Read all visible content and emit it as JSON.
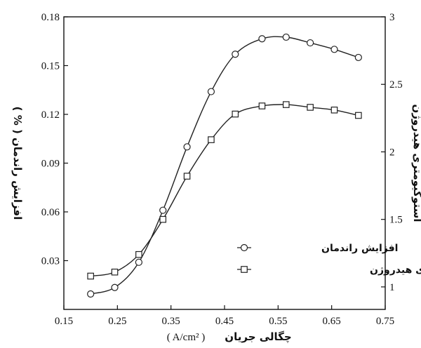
{
  "chart_data": {
    "type": "line",
    "xlabel": "چگالی جریان",
    "xunit": "( A/cm² )",
    "ylabel_left": "افزایش راندمان ( % )",
    "ylabel_right": "استوکیومتری هیدروژن",
    "xlim": [
      0.15,
      0.75
    ],
    "ylim_left": [
      0.0,
      0.18
    ],
    "ylim_right": [
      0.8333,
      3
    ],
    "xticks": [
      "0.15",
      "0.25",
      "0.35",
      "0.45",
      "0.55",
      "0.65",
      "0.75"
    ],
    "yticks_left": [
      "0.03",
      "0.06",
      "0.09",
      "0.12",
      "0.15",
      "0.18"
    ],
    "yticks_right": [
      "1",
      "1.5",
      "2",
      "2.5",
      "3"
    ],
    "grid": false,
    "legend": {
      "position": "bottom-right"
    },
    "series": [
      {
        "name": "افزایش راندمان",
        "axis": "left",
        "marker": "circle",
        "x": [
          0.2,
          0.245,
          0.29,
          0.335,
          0.38,
          0.425,
          0.47,
          0.52,
          0.565,
          0.61,
          0.655,
          0.7
        ],
        "y": [
          0.0095,
          0.0135,
          0.029,
          0.061,
          0.1,
          0.134,
          0.157,
          0.1665,
          0.1675,
          0.164,
          0.16,
          0.155
        ]
      },
      {
        "name": "استوکیومتری هیدروژن",
        "axis": "right",
        "marker": "square",
        "x": [
          0.2,
          0.245,
          0.29,
          0.335,
          0.38,
          0.425,
          0.47,
          0.52,
          0.565,
          0.61,
          0.655,
          0.7
        ],
        "y": [
          1.08,
          1.11,
          1.24,
          1.5,
          1.82,
          2.09,
          2.28,
          2.34,
          2.35,
          2.33,
          2.31,
          2.27
        ]
      }
    ]
  }
}
